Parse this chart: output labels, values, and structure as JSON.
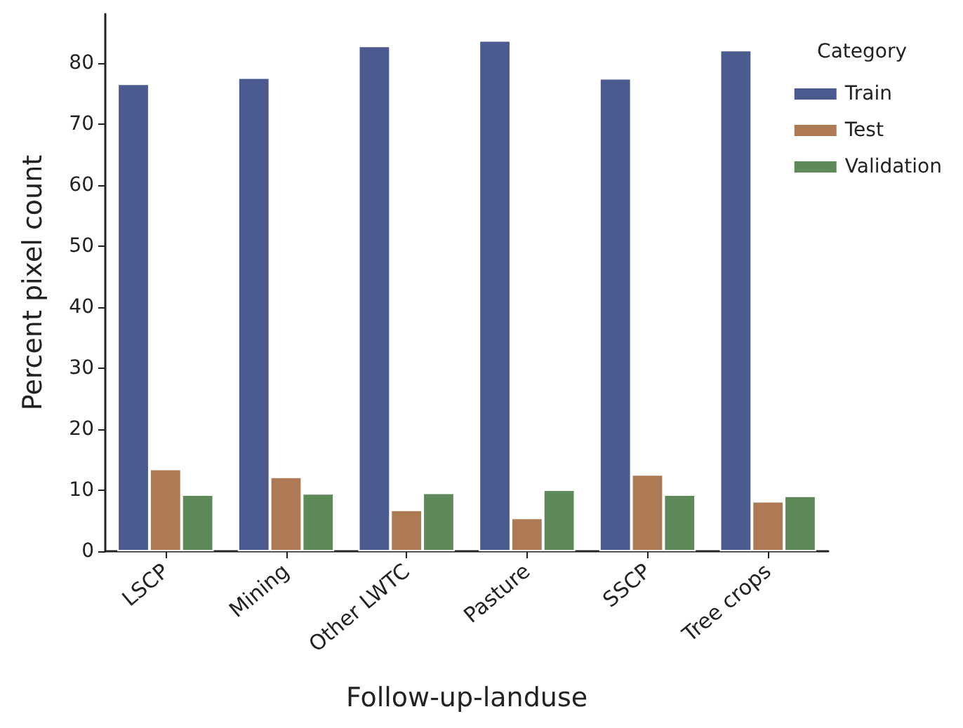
{
  "chart_data": {
    "type": "bar",
    "xlabel": "Follow-up-landuse",
    "ylabel": "Percent pixel count",
    "legend_title": "Category",
    "categories": [
      "LSCP",
      "Mining",
      "Other LWTC",
      "Pasture",
      "SSCP",
      "Tree crops"
    ],
    "series": [
      {
        "name": "Train",
        "color": "#4c5b8f",
        "values": [
          76.6,
          77.6,
          82.8,
          83.7,
          77.5,
          82.1
        ]
      },
      {
        "name": "Test",
        "color": "#ad7a55",
        "values": [
          13.5,
          12.2,
          6.8,
          5.5,
          12.6,
          8.2
        ]
      },
      {
        "name": "Validation",
        "color": "#5e8a5a",
        "values": [
          9.3,
          9.5,
          9.6,
          10.1,
          9.3,
          9.1
        ]
      }
    ],
    "ylim": [
      0,
      88
    ],
    "yticks": [
      0,
      10,
      20,
      30,
      40,
      50,
      60,
      70,
      80
    ],
    "grid": false,
    "legend": "right"
  }
}
